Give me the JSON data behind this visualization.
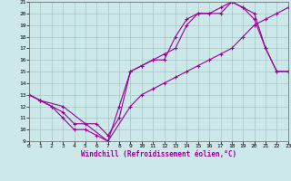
{
  "xlabel": "Windchill (Refroidissement éolien,°C)",
  "ylabel": "",
  "bg_color": "#cce8e8",
  "line_color": "#990099",
  "marker": "+",
  "xlim": [
    0,
    23
  ],
  "ylim": [
    9,
    21
  ],
  "xticks": [
    0,
    1,
    2,
    3,
    4,
    5,
    6,
    7,
    8,
    9,
    10,
    11,
    12,
    13,
    14,
    15,
    16,
    17,
    18,
    19,
    20,
    21,
    22,
    23
  ],
  "yticks": [
    9,
    10,
    11,
    12,
    13,
    14,
    15,
    16,
    17,
    18,
    19,
    20,
    21
  ],
  "lines": [
    {
      "x": [
        0,
        1,
        2,
        3,
        4,
        5,
        6,
        7,
        8,
        9,
        10,
        11,
        12,
        13,
        14,
        15,
        16,
        17,
        18,
        19,
        20,
        21,
        22,
        23
      ],
      "y": [
        13,
        12.5,
        12,
        11,
        10,
        10,
        9.5,
        9,
        12,
        15,
        15.5,
        16,
        16,
        18,
        19.5,
        20,
        20,
        20,
        21,
        20.5,
        19.5,
        17,
        15,
        15
      ]
    },
    {
      "x": [
        0,
        1,
        2,
        3,
        4,
        5,
        6,
        7,
        8,
        9,
        10,
        11,
        12,
        13,
        14,
        15,
        16,
        17,
        18,
        19,
        20,
        21,
        22,
        23
      ],
      "y": [
        13,
        12.5,
        12,
        11.5,
        10.5,
        10.5,
        10.5,
        9.5,
        11,
        15,
        15.5,
        16,
        16.5,
        17,
        19,
        20,
        20,
        20.5,
        21,
        20.5,
        20,
        17,
        15,
        15
      ]
    },
    {
      "x": [
        0,
        1,
        3,
        7,
        9,
        10,
        11,
        12,
        13,
        14,
        15,
        16,
        17,
        18,
        19,
        20,
        21,
        22,
        23
      ],
      "y": [
        13,
        12.5,
        12,
        9,
        12,
        13,
        13.5,
        14,
        14.5,
        15,
        15.5,
        16,
        16.5,
        17,
        18,
        19,
        19.5,
        20,
        20.5
      ]
    }
  ]
}
